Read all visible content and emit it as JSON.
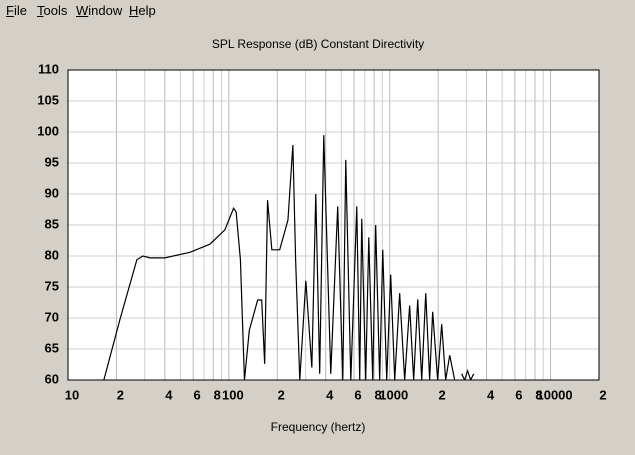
{
  "menu": [
    "File",
    "Tools",
    "Window",
    "Help"
  ],
  "chart_data": {
    "type": "line",
    "title": "SPL Response (dB)   Constant Directivity",
    "x_label": "Frequency (hertz)",
    "log_x": true,
    "grid": true,
    "color": "#000000",
    "x": [
      16.7,
      21,
      26.8,
      29.2,
      32.3,
      40,
      57.3,
      76.2,
      94.4,
      107,
      111,
      118,
      125,
      134,
      151,
      160,
      167,
      174,
      185,
      207,
      233,
      250,
      260,
      276,
      301,
      328,
      347,
      367,
      389,
      430,
      475,
      511,
      533,
      573,
      624,
      651,
      670,
      709,
      741,
      784,
      818,
      866,
      905,
      958,
      1014,
      1074,
      1153,
      1239,
      1330,
      1409,
      1493,
      1581,
      1675,
      1771,
      1849,
      1986,
      2104,
      2228,
      2360,
      2535,
      2650,
      2800,
      2924,
      3048,
      3184,
      3327
    ],
    "values": [
      60,
      69.7,
      79.4,
      80,
      79.7,
      79.7,
      80.6,
      81.9,
      84.2,
      87.7,
      87.1,
      79.4,
      60,
      68,
      72.9,
      72.9,
      62.6,
      89,
      81,
      81,
      85.8,
      97.9,
      79.4,
      60,
      76,
      62,
      90,
      61,
      99.5,
      61,
      88,
      60,
      95.5,
      60,
      88,
      60,
      86,
      60,
      83,
      60,
      85,
      60,
      81,
      60,
      77,
      60,
      74,
      60,
      72,
      60,
      73,
      60,
      74,
      60,
      71,
      60,
      69,
      60,
      64,
      60,
      null,
      61,
      60,
      61.5,
      60,
      61
    ],
    "xlim": [
      10,
      20000
    ],
    "ylim": [
      60,
      110
    ],
    "xticks": [
      10,
      {
        "value": 20,
        "label": "2"
      },
      {
        "value": 40,
        "label": "4"
      },
      {
        "value": 60,
        "label": "6"
      },
      {
        "value": 80,
        "label": "8"
      },
      100,
      {
        "value": 200,
        "label": "2"
      },
      {
        "value": 400,
        "label": "4"
      },
      {
        "value": 600,
        "label": "6"
      },
      {
        "value": 800,
        "label": "8"
      },
      1000,
      {
        "value": 2000,
        "label": "2"
      },
      {
        "value": 4000,
        "label": "4"
      },
      {
        "value": 6000,
        "label": "6"
      },
      {
        "value": 8000,
        "label": "8"
      },
      10000,
      {
        "value": 20000,
        "label": "2"
      }
    ],
    "xgrid_minor": [
      30,
      50,
      70,
      90,
      300,
      500,
      700,
      900,
      3000,
      5000,
      7000,
      9000
    ],
    "yticks": [
      60,
      65,
      70,
      75,
      80,
      85,
      90,
      95,
      100,
      105,
      110
    ]
  }
}
